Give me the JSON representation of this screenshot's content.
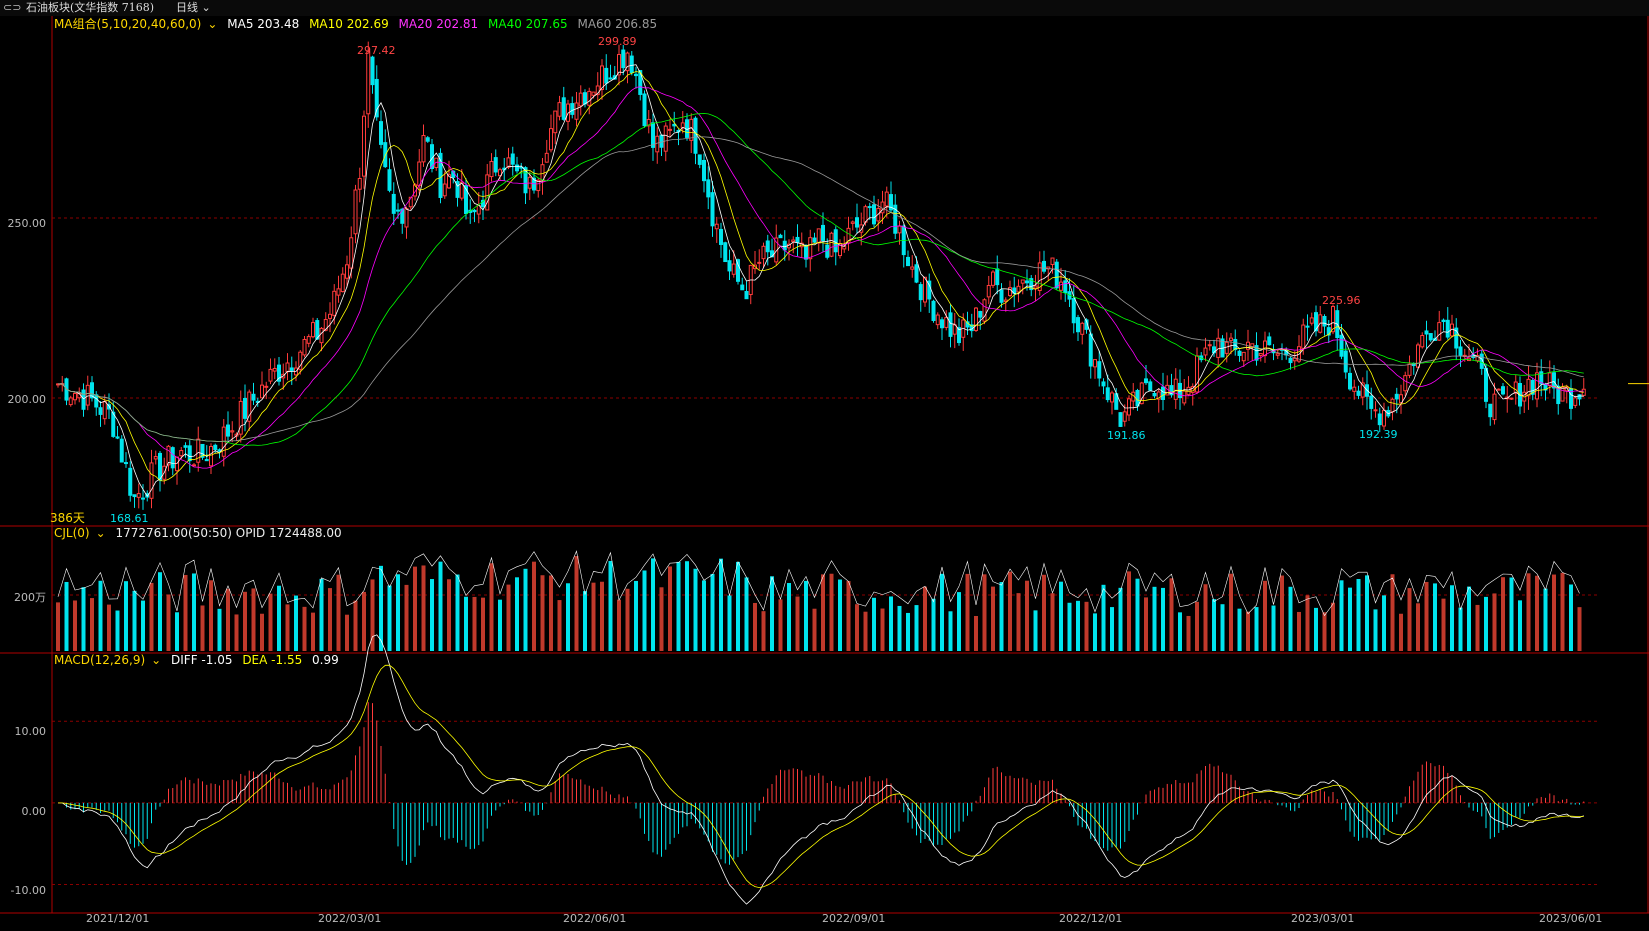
{
  "topbar": {
    "title": "石油板块(文华指数 7168)",
    "period": "日线",
    "link_icon": "link-icon",
    "dropdown_icon": "chevron-down-icon"
  },
  "colors": {
    "up": "#ff3b3b",
    "down": "#00e5ee",
    "ma5": "#ffffff",
    "ma10": "#ffff00",
    "ma20": "#ff00ff",
    "ma40": "#00ff00",
    "ma60": "#999999",
    "grid": "#8b0000"
  },
  "legend_main": {
    "label": "MA组合(5,10,20,40,60,0)",
    "ma5": "MA5 203.48",
    "ma10": "MA10 202.69",
    "ma20": "MA20 202.81",
    "ma40": "MA40 207.65",
    "ma60": "MA60 206.85"
  },
  "legend_vol": {
    "label": "CJL(0)",
    "values": "1772761.00(50:50)   OPID 1724488.00"
  },
  "legend_macd": {
    "label": "MACD(12,26,9)",
    "diff": "DIFF -1.05",
    "dea": "DEA -1.55",
    "macd": "0.99"
  },
  "days_label": "386天",
  "chart_data": {
    "type": "candlestick",
    "x_dates": [
      "2021/12/01",
      "2022/03/01",
      "2022/06/01",
      "2022/09/01",
      "2022/12/01",
      "2023/03/01",
      "2023/06/01"
    ],
    "price_ticks": [
      "250.00",
      "200.00"
    ],
    "vol_tick": "200万",
    "macd_ticks": [
      "10.00",
      "0.00",
      "-10.00"
    ],
    "extremes": [
      {
        "label": "297.42",
        "kind": "high",
        "date_index": 0.203
      },
      {
        "label": "299.89",
        "kind": "high",
        "date_index": 0.374
      },
      {
        "label": "168.61",
        "kind": "low",
        "date_index": 0.05
      },
      {
        "label": "191.86",
        "kind": "low",
        "date_index": 0.697
      },
      {
        "label": "225.96",
        "kind": "high",
        "date_index": 0.836
      },
      {
        "label": "192.39",
        "kind": "low",
        "date_index": 0.86
      }
    ],
    "price_path": [
      [
        0.0,
        204
      ],
      [
        0.02,
        200
      ],
      [
        0.035,
        195
      ],
      [
        0.05,
        172
      ],
      [
        0.065,
        180
      ],
      [
        0.08,
        185
      ],
      [
        0.095,
        184
      ],
      [
        0.11,
        190
      ],
      [
        0.125,
        198
      ],
      [
        0.14,
        206
      ],
      [
        0.155,
        212
      ],
      [
        0.17,
        218
      ],
      [
        0.18,
        225
      ],
      [
        0.19,
        240
      ],
      [
        0.198,
        265
      ],
      [
        0.203,
        295
      ],
      [
        0.21,
        270
      ],
      [
        0.22,
        250
      ],
      [
        0.23,
        255
      ],
      [
        0.24,
        272
      ],
      [
        0.25,
        260
      ],
      [
        0.26,
        262
      ],
      [
        0.27,
        248
      ],
      [
        0.28,
        258
      ],
      [
        0.29,
        268
      ],
      [
        0.3,
        262
      ],
      [
        0.31,
        258
      ],
      [
        0.32,
        272
      ],
      [
        0.33,
        280
      ],
      [
        0.34,
        284
      ],
      [
        0.35,
        287
      ],
      [
        0.36,
        291
      ],
      [
        0.374,
        297
      ],
      [
        0.38,
        288
      ],
      [
        0.39,
        270
      ],
      [
        0.4,
        272
      ],
      [
        0.41,
        278
      ],
      [
        0.42,
        270
      ],
      [
        0.43,
        250
      ],
      [
        0.44,
        235
      ],
      [
        0.45,
        230
      ],
      [
        0.46,
        238
      ],
      [
        0.47,
        240
      ],
      [
        0.48,
        243
      ],
      [
        0.49,
        238
      ],
      [
        0.5,
        245
      ],
      [
        0.51,
        240
      ],
      [
        0.52,
        246
      ],
      [
        0.53,
        250
      ],
      [
        0.54,
        255
      ],
      [
        0.55,
        248
      ],
      [
        0.56,
        236
      ],
      [
        0.57,
        228
      ],
      [
        0.58,
        222
      ],
      [
        0.59,
        217
      ],
      [
        0.6,
        220
      ],
      [
        0.61,
        232
      ],
      [
        0.62,
        230
      ],
      [
        0.63,
        232
      ],
      [
        0.64,
        235
      ],
      [
        0.65,
        236
      ],
      [
        0.66,
        232
      ],
      [
        0.67,
        220
      ],
      [
        0.68,
        210
      ],
      [
        0.69,
        200
      ],
      [
        0.697,
        194
      ],
      [
        0.71,
        200
      ],
      [
        0.72,
        205
      ],
      [
        0.73,
        200
      ],
      [
        0.74,
        204
      ],
      [
        0.75,
        210
      ],
      [
        0.76,
        216
      ],
      [
        0.77,
        212
      ],
      [
        0.78,
        215
      ],
      [
        0.79,
        213
      ],
      [
        0.8,
        212
      ],
      [
        0.81,
        214
      ],
      [
        0.82,
        218
      ],
      [
        0.836,
        222
      ],
      [
        0.845,
        208
      ],
      [
        0.86,
        196
      ],
      [
        0.87,
        197
      ],
      [
        0.88,
        203
      ],
      [
        0.89,
        213
      ],
      [
        0.9,
        220
      ],
      [
        0.91,
        222
      ],
      [
        0.92,
        215
      ],
      [
        0.93,
        208
      ],
      [
        0.94,
        198
      ],
      [
        0.95,
        198
      ],
      [
        0.96,
        203
      ],
      [
        0.97,
        206
      ],
      [
        0.98,
        202
      ],
      [
        0.99,
        201
      ],
      [
        1.0,
        204
      ]
    ],
    "price_range": [
      165,
      305
    ],
    "macd_range": [
      -13,
      18
    ]
  }
}
